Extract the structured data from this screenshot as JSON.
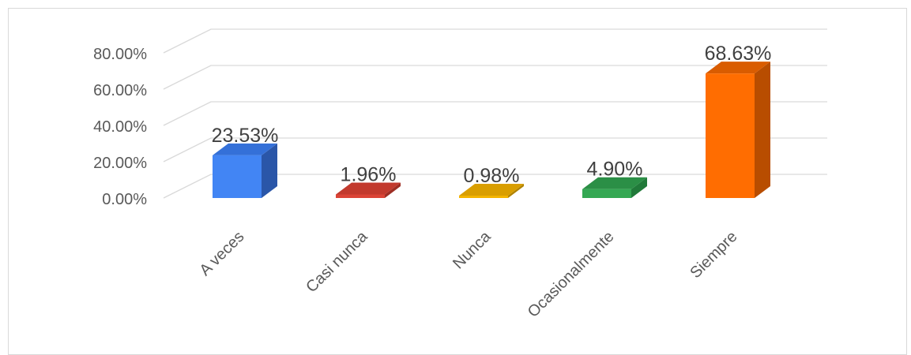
{
  "chart_data": {
    "type": "bar",
    "style": "3d-column",
    "categories": [
      "A veces",
      "Casi nunca",
      "Nunca",
      "Ocasionalmente",
      "Siempre"
    ],
    "values": [
      23.53,
      1.96,
      0.98,
      4.9,
      68.63
    ],
    "data_labels": [
      "23.53%",
      "1.96%",
      "0.98%",
      "4.90%",
      "68.63%"
    ],
    "y_ticks": [
      "0.00%",
      "20.00%",
      "40.00%",
      "60.00%",
      "80.00%"
    ],
    "ylim": [
      0,
      80
    ],
    "grid": true,
    "legend": "none",
    "colors": {
      "bar_front": [
        "#4285F4",
        "#DB4437",
        "#F4B400",
        "#34A853",
        "#FF6D01"
      ],
      "bar_side": [
        "#2A56A8",
        "#9E2E24",
        "#B08200",
        "#217A3A",
        "#B84D00"
      ],
      "bar_top": [
        "#3470D8",
        "#C23A2E",
        "#D99E00",
        "#2B8F46",
        "#D95C00"
      ],
      "gridline": "#d9d9d9",
      "text": "#595959"
    }
  }
}
